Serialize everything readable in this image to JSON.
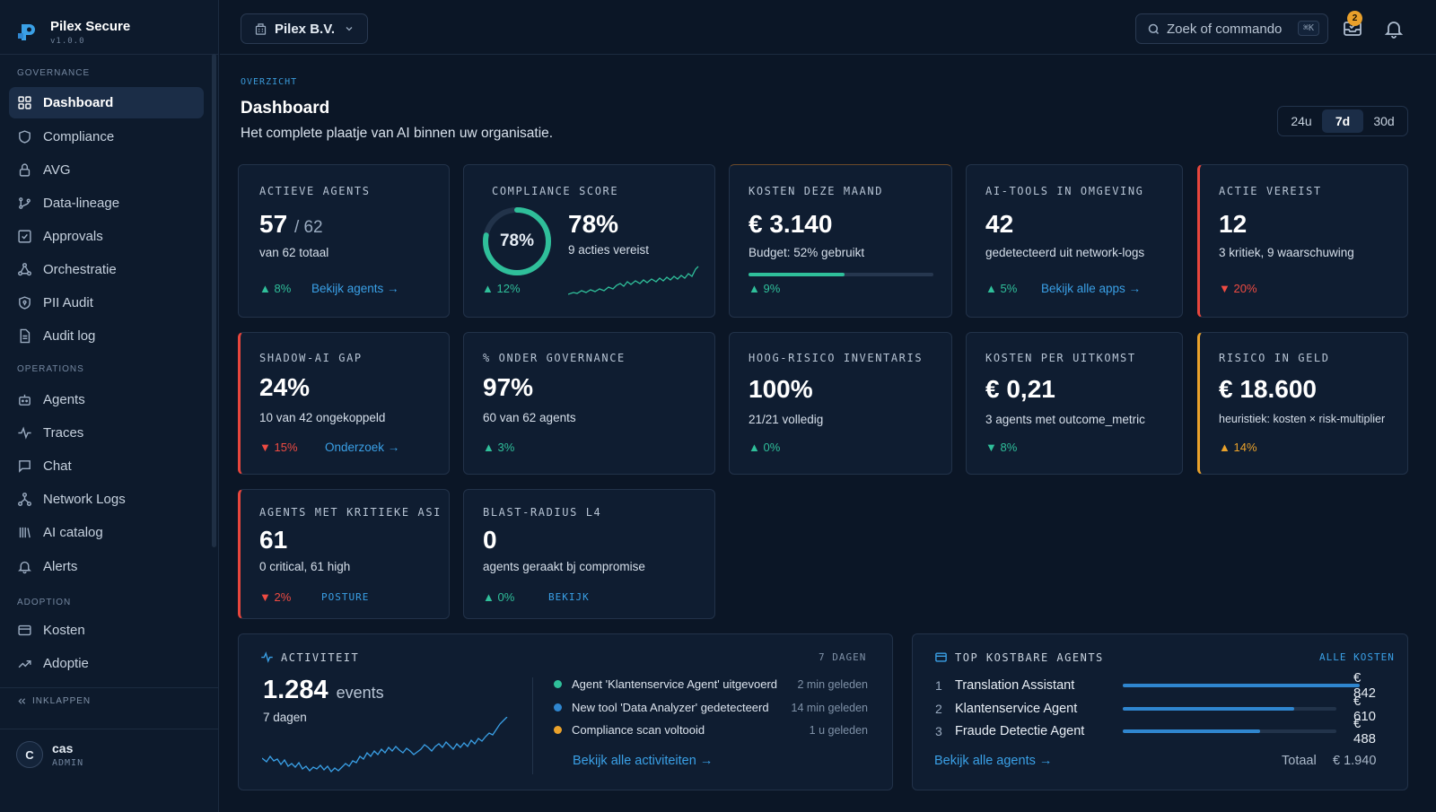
{
  "brand": {
    "name": "Pilex Secure",
    "version": "v1.0.0"
  },
  "sidebar": {
    "sections": [
      {
        "label": "GOVERNANCE"
      },
      {
        "label": "OPERATIONS"
      },
      {
        "label": "ADOPTION"
      }
    ],
    "items": [
      {
        "label": "Dashboard",
        "icon": "grid-icon",
        "active": true
      },
      {
        "label": "Compliance",
        "icon": "shield-icon"
      },
      {
        "label": "AVG",
        "icon": "lock-icon"
      },
      {
        "label": "Data-lineage",
        "icon": "branch-icon"
      },
      {
        "label": "Approvals",
        "icon": "check-square-icon"
      },
      {
        "label": "Orchestratie",
        "icon": "nodes-icon"
      },
      {
        "label": "PII Audit",
        "icon": "shield-lock-icon"
      },
      {
        "label": "Audit log",
        "icon": "document-icon"
      },
      {
        "label": "Agents",
        "icon": "robot-icon"
      },
      {
        "label": "Traces",
        "icon": "pulse-icon"
      },
      {
        "label": "Chat",
        "icon": "chat-icon"
      },
      {
        "label": "Network Logs",
        "icon": "network-icon"
      },
      {
        "label": "AI catalog",
        "icon": "library-icon"
      },
      {
        "label": "Alerts",
        "icon": "bell-icon"
      },
      {
        "label": "Kosten",
        "icon": "credit-card-icon"
      },
      {
        "label": "Adoptie",
        "icon": "trend-up-icon"
      }
    ],
    "collapse_label": "INKLAPPEN",
    "user": {
      "initial": "C",
      "name": "cas",
      "role": "ADMIN"
    }
  },
  "topbar": {
    "org": "Pilex B.V.",
    "search_placeholder": "Zoek of commando",
    "search_shortcut": "⌘K",
    "inbox_badge": "2"
  },
  "header": {
    "eyebrow": "OVERZICHT",
    "title": "Dashboard",
    "subtitle": "Het complete plaatje van AI binnen uw organisatie.",
    "ranges": [
      "24u",
      "7d",
      "30d"
    ],
    "active_range": "7d"
  },
  "colors": {
    "accent": "#3aa0e6",
    "up": "#2fbf9a",
    "down": "#ef4b42",
    "warn": "#eaa22b"
  },
  "cards": {
    "active_agents": {
      "label": "ACTIEVE AGENTS",
      "value": "57",
      "total": "/ 62",
      "sub": "van 62 totaal",
      "trend": "8%",
      "link": "Bekijk agents →"
    },
    "compliance": {
      "label": "COMPLIANCE SCORE",
      "ring": "78%",
      "score_fraction": 0.78,
      "value": "78%",
      "sub": "9 acties vereist",
      "trend": "12%"
    },
    "costs": {
      "label": "KOSTEN DEZE MAAND",
      "value": "€ 3.140",
      "sub": "Budget: 52% gebruikt",
      "budget_fraction": 0.52,
      "trend": "9%"
    },
    "ai_tools": {
      "label": "AI-TOOLS IN OMGEVING",
      "value": "42",
      "sub": "gedetecteerd uit network-logs",
      "trend": "5%",
      "link": "Bekijk alle apps →"
    },
    "action": {
      "label": "ACTIE VEREIST",
      "value": "12",
      "sub": "3 kritiek, 9 waarschuwing",
      "trend": "20%"
    },
    "shadow": {
      "label": "SHADOW-AI GAP",
      "value": "24%",
      "sub": "10 van 42 ongekoppeld",
      "trend": "15%",
      "link": "Onderzoek →"
    },
    "governance": {
      "label": "% ONDER GOVERNANCE",
      "value": "97%",
      "sub": "60 van 62 agents",
      "trend": "3%"
    },
    "high_risk": {
      "label": "HOOG-RISICO INVENTARIS",
      "value": "100%",
      "sub": "21/21 volledig",
      "trend": "0%"
    },
    "cost_outcome": {
      "label": "KOSTEN PER UITKOMST",
      "value": "€ 0,21",
      "sub": "3 agents met outcome_metric",
      "trend": "8%"
    },
    "risk_money": {
      "label": "RISICO IN GELD",
      "value": "€ 18.600",
      "sub": "heuristiek: kosten × risk-multiplier",
      "trend": "14%"
    },
    "critical_asi": {
      "label": "AGENTS MET KRITIEKE ASI",
      "value": "61",
      "sub": "0 critical, 61 high",
      "trend": "2%",
      "link": "POSTURE"
    },
    "blast": {
      "label": "BLAST-RADIUS L4",
      "value": "0",
      "sub": "agents geraakt bj compromise",
      "trend": "0%",
      "link": "BEKIJK"
    }
  },
  "activity": {
    "title": "ACTIVITEIT",
    "period": "7 DAGEN",
    "value": "1.284",
    "unit": "events",
    "sub": "7 dagen",
    "feed": [
      {
        "text": "Agent 'Klantenservice Agent' uitgevoerd",
        "when": "2 min geleden",
        "color": "#2fbf9a"
      },
      {
        "text": "New tool 'Data Analyzer' gedetecteerd",
        "when": "14 min geleden",
        "color": "#2f86cf"
      },
      {
        "text": "Compliance scan voltooid",
        "when": "1 u geleden",
        "color": "#eaa22b"
      }
    ],
    "link": "Bekijk alle activiteiten →"
  },
  "top_agents": {
    "title": "TOP KOSTBARE AGENTS",
    "link_all": "ALLE KOSTEN",
    "rows": [
      {
        "rank": "1",
        "name": "Translation Assistant",
        "amount": "€ 842",
        "value": 842
      },
      {
        "rank": "2",
        "name": "Klantenservice Agent",
        "amount": "€ 610",
        "value": 610
      },
      {
        "rank": "3",
        "name": "Fraude Detectie Agent",
        "amount": "€ 488",
        "value": 488
      }
    ],
    "link_agents": "Bekijk alle agents →",
    "total_label": "Totaal",
    "total": "€ 1.940"
  }
}
